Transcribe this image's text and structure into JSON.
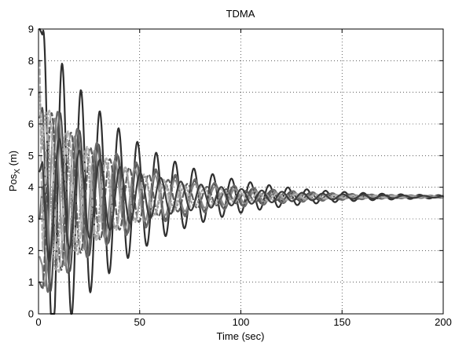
{
  "chart_data": {
    "type": "line",
    "title": "TDMA",
    "xlabel": "Time (sec)",
    "ylabel_main": "Pos",
    "ylabel_sub": "X",
    "ylabel_unit": "(m)",
    "xlim": [
      0,
      200
    ],
    "ylim": [
      0,
      9
    ],
    "xticks": [
      0,
      50,
      100,
      150,
      200
    ],
    "yticks": [
      0,
      1,
      2,
      3,
      4,
      5,
      6,
      7,
      8,
      9
    ],
    "grid": true,
    "legend": "none",
    "steady_state": 3.7,
    "series": [
      {
        "color": "#2f2f2f",
        "dash": "solid",
        "amplitude": 5.3,
        "period": 9.3,
        "phase": 1.3,
        "decay_tau": 42,
        "initial": 9.0
      },
      {
        "color": "#4d4d4d",
        "dash": "solid",
        "amplitude": 3.3,
        "period": 9.5,
        "phase": 2.1,
        "decay_tau": 40,
        "initial": 6.2
      },
      {
        "color": "#6a6a6a",
        "dash": "solid",
        "amplitude": 3.2,
        "period": 9.7,
        "phase": 3.0,
        "decay_tau": 43,
        "initial": 3.0
      },
      {
        "color": "#8a8a8a",
        "dash": "solid",
        "amplitude": 2.9,
        "period": 9.9,
        "phase": 4.0,
        "decay_tau": 38,
        "initial": 1.8
      },
      {
        "color": "#5a5a5a",
        "dash": "dashed",
        "amplitude": 3.0,
        "period": 9.6,
        "phase": 4.9,
        "decay_tau": 36,
        "initial": 1.0
      },
      {
        "color": "#b0b0b0",
        "dash": "dashed",
        "amplitude": 3.0,
        "period": 9.4,
        "phase": 5.6,
        "decay_tau": 35,
        "initial": 8.0
      },
      {
        "color": "#9a9a9a",
        "dash": "dotted",
        "amplitude": 2.8,
        "period": 9.8,
        "phase": 0.5,
        "decay_tau": 34,
        "initial": 7.0
      },
      {
        "color": "#3c3c3c",
        "dash": "solid",
        "amplitude": 2.2,
        "period": 10.0,
        "phase": 2.6,
        "decay_tau": 45,
        "initial": 4.5
      }
    ]
  }
}
